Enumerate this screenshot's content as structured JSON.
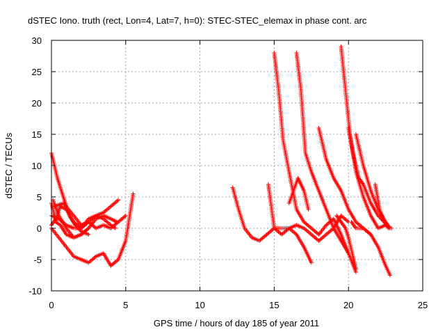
{
  "chart_data": {
    "type": "scatter",
    "title": "dSTEC Iono. truth (rect, Lon=4, Lat=7, h=0): STEC-STEC_elemax in phase cont. arc",
    "xlabel": "GPS time / hours of day 185 of year 2011",
    "ylabel": "dSTEC  / TECUs",
    "xlim": [
      0,
      25
    ],
    "ylim": [
      -10,
      30
    ],
    "xticks": [
      0,
      5,
      10,
      15,
      20,
      25
    ],
    "yticks": [
      -10,
      -5,
      0,
      5,
      10,
      15,
      20,
      25,
      30
    ],
    "xtick_labels": [
      "0",
      "5",
      "10",
      "15",
      "20",
      "25"
    ],
    "ytick_labels": [
      "-10",
      "-5",
      "0",
      "5",
      "10",
      "15",
      "20",
      "25",
      "30"
    ],
    "grid": true,
    "marker": "plus",
    "color": "#ff0000",
    "series": [
      {
        "x": [
          0.0,
          0.2,
          0.4,
          0.6,
          0.8,
          1.0,
          1.2,
          1.6,
          2.0,
          2.5
        ],
        "y": [
          12,
          10,
          8,
          6.5,
          5,
          3.5,
          2,
          0.5,
          -0.5,
          -1
        ]
      },
      {
        "x": [
          0.0,
          0.3,
          0.6,
          1.0,
          1.5,
          2.0,
          2.5,
          3.0,
          3.5,
          4.0,
          4.3
        ],
        "y": [
          0.5,
          1.5,
          3.5,
          3,
          1,
          0,
          1,
          2,
          1.5,
          0.5,
          0
        ]
      },
      {
        "x": [
          0.0,
          0.5,
          1.0,
          1.5,
          2.0,
          2.5,
          3.0,
          3.5,
          4.0,
          4.5
        ],
        "y": [
          2,
          1.5,
          0.5,
          0,
          0,
          1.5,
          2,
          2.5,
          3.5,
          4.5
        ]
      },
      {
        "x": [
          0.1,
          0.5,
          1.0,
          1.5,
          2.0,
          2.5,
          3.0,
          3.5,
          4.0,
          4.4
        ],
        "y": [
          4.5,
          2,
          0,
          -1.5,
          -1,
          0,
          1.5,
          2,
          1.5,
          1
        ]
      },
      {
        "x": [
          0.0,
          0.3,
          0.6,
          1.0,
          1.5,
          2.0,
          2.5
        ],
        "y": [
          4,
          1,
          0.5,
          -1,
          -1.5,
          -1,
          0
        ]
      },
      {
        "x": [
          0.0,
          0.5,
          1.0,
          1.5,
          2.0,
          2.5,
          3.0,
          3.5,
          4.0,
          4.5,
          5.0,
          5.5
        ],
        "y": [
          0,
          -1.5,
          -3,
          -4.5,
          -5,
          -5.5,
          -4.5,
          -4,
          -6,
          -5,
          -2,
          5.5
        ]
      },
      {
        "x": [
          0.2,
          0.8,
          1.5,
          2.0,
          2.5,
          3.0,
          3.5,
          4.0,
          4.5,
          5.0
        ],
        "y": [
          3.5,
          4,
          2,
          0.5,
          1,
          0,
          0.5,
          0,
          1,
          2
        ]
      },
      {
        "x": [
          12.2,
          12.6,
          13.0,
          13.5,
          14.0,
          14.5,
          15.0,
          15.5,
          16.0,
          16.5,
          17.0,
          17.5
        ],
        "y": [
          6.5,
          3,
          0,
          -1.5,
          -2,
          -1,
          0,
          0,
          0,
          -1,
          -3,
          -5.5
        ]
      },
      {
        "x": [
          14.6,
          15.0,
          15.5,
          16.0,
          16.5,
          17.0,
          17.5,
          18.0,
          18.5,
          19.0,
          19.5,
          20.0
        ],
        "y": [
          7,
          0,
          -1,
          0,
          0.5,
          0,
          -1,
          -2,
          -1,
          0,
          2,
          1
        ]
      },
      {
        "x": [
          15.0,
          15.3,
          15.6,
          16.0,
          16.5,
          17.0,
          17.5,
          18.0,
          18.5,
          19.0,
          19.5,
          20.0,
          20.5
        ],
        "y": [
          28,
          22,
          14,
          9,
          3,
          1,
          0,
          -1,
          0.5,
          1.5,
          -1,
          -4,
          -7
        ]
      },
      {
        "x": [
          16.5,
          16.8,
          17.1,
          17.5,
          18.0,
          18.5,
          19.0,
          19.5,
          20.0
        ],
        "y": [
          28,
          22,
          12,
          9,
          6,
          3,
          0,
          -2,
          -4
        ]
      },
      {
        "x": [
          16.0,
          16.3,
          16.6,
          17.0,
          17.3
        ],
        "y": [
          4,
          6,
          8,
          6,
          3
        ]
      },
      {
        "x": [
          18.0,
          18.5,
          19.0,
          19.5,
          20.0,
          20.5,
          21.0,
          21.5
        ],
        "y": [
          16,
          11,
          8,
          6,
          3,
          1,
          0,
          -1
        ]
      },
      {
        "x": [
          19.5,
          19.8,
          20.1,
          20.5,
          21.0,
          21.5,
          22.0,
          22.5
        ],
        "y": [
          29,
          22,
          15,
          9,
          5,
          2,
          0,
          0.5
        ]
      },
      {
        "x": [
          20.0,
          20.3,
          20.7,
          21.0,
          21.5,
          22.0,
          22.4,
          22.8
        ],
        "y": [
          16,
          12,
          8,
          7,
          4,
          2,
          1,
          0
        ]
      },
      {
        "x": [
          20.5,
          21.0,
          21.5,
          22.0,
          22.5,
          22.8
        ],
        "y": [
          15,
          10,
          6,
          3,
          1,
          0
        ]
      },
      {
        "x": [
          20.2,
          20.5,
          21.0,
          21.5,
          22.0,
          22.5,
          22.8
        ],
        "y": [
          1,
          0,
          0,
          -1,
          -3,
          -6,
          -7.5
        ]
      },
      {
        "x": [
          19.2,
          19.5,
          19.8,
          20.0,
          20.5
        ],
        "y": [
          2,
          1,
          0,
          -1.5,
          -6.5
        ]
      },
      {
        "x": [
          21.8,
          22.1,
          22.4,
          22.7,
          22.9
        ],
        "y": [
          7,
          3,
          1,
          0,
          0
        ]
      }
    ]
  }
}
